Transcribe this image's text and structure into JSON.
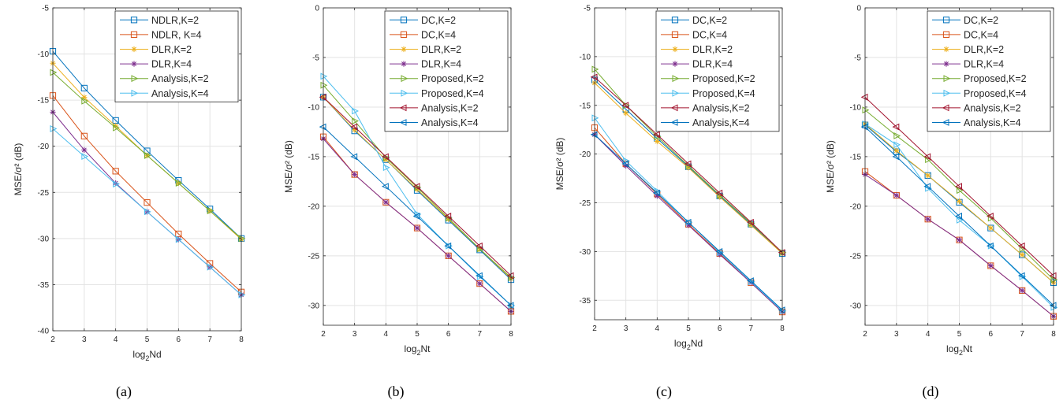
{
  "chart_data": [
    {
      "type": "line",
      "caption": "(a)",
      "xlabel_base": "log",
      "xlabel_sub": "2",
      "xlabel_rest": "Nd",
      "ylabel": "MSE/σ² (dB)",
      "xlim": [
        2,
        8
      ],
      "ylim": [
        -40,
        -5
      ],
      "xticks": [
        "2",
        "3",
        "4",
        "5",
        "6",
        "7",
        "8"
      ],
      "yticks": [
        "-40",
        "-35",
        "-30",
        "-25",
        "-20",
        "-15",
        "-10",
        "-5"
      ],
      "grid": true,
      "legend": "top-right",
      "x": [
        2,
        3,
        4,
        5,
        6,
        7,
        8
      ],
      "series": [
        {
          "name": "NDLR,K=2",
          "color": "#0072BD",
          "marker": "square",
          "values": [
            -9.7,
            -13.7,
            -17.2,
            -20.5,
            -23.7,
            -26.8,
            -30.0
          ]
        },
        {
          "name": "NDLR, K=4",
          "color": "#D95319",
          "marker": "square",
          "values": [
            -14.5,
            -18.9,
            -22.7,
            -26.1,
            -29.5,
            -32.7,
            -35.8
          ]
        },
        {
          "name": "DLR,K=2",
          "color": "#EDB120",
          "marker": "asterisk",
          "values": [
            -11.0,
            -14.7,
            -17.8,
            -21.0,
            -24.0,
            -27.0,
            -30.1
          ]
        },
        {
          "name": "DLR,K=4",
          "color": "#7E2F8E",
          "marker": "asterisk",
          "values": [
            -16.3,
            -20.4,
            -24.0,
            -27.1,
            -30.1,
            -33.1,
            -36.1
          ]
        },
        {
          "name": "Analysis,K=2",
          "color": "#77AC30",
          "marker": "triangle-right",
          "values": [
            -12.0,
            -15.1,
            -18.0,
            -21.0,
            -24.0,
            -27.0,
            -30.0
          ]
        },
        {
          "name": "Analysis,K=4",
          "color": "#4DBEEE",
          "marker": "triangle-right",
          "values": [
            -18.1,
            -21.1,
            -24.1,
            -27.1,
            -30.1,
            -33.1,
            -36.1
          ]
        }
      ]
    },
    {
      "type": "line",
      "caption": "(b)",
      "xlabel_base": "log",
      "xlabel_sub": "2",
      "xlabel_rest": "Nt",
      "ylabel": "MSE/σ² (dB)",
      "xlim": [
        2,
        8
      ],
      "ylim": [
        -32,
        0
      ],
      "xticks": [
        "2",
        "3",
        "4",
        "5",
        "6",
        "7",
        "8"
      ],
      "yticks": [
        "-30",
        "-25",
        "-20",
        "-15",
        "-10",
        "-5",
        "0"
      ],
      "grid": true,
      "legend": "top-right",
      "x": [
        2,
        3,
        4,
        5,
        6,
        7,
        8
      ],
      "series": [
        {
          "name": "DC,K=2",
          "color": "#0072BD",
          "marker": "square",
          "values": [
            -9.0,
            -12.4,
            -15.3,
            -18.4,
            -21.4,
            -24.4,
            -27.4
          ]
        },
        {
          "name": "DC,K=4",
          "color": "#D95319",
          "marker": "square",
          "values": [
            -13.0,
            -16.8,
            -19.6,
            -22.2,
            -25.0,
            -27.8,
            -30.6
          ]
        },
        {
          "name": "DLR,K=2",
          "color": "#EDB120",
          "marker": "asterisk",
          "values": [
            -9.0,
            -12.3,
            -15.3,
            -18.3,
            -21.3,
            -24.3,
            -27.3
          ]
        },
        {
          "name": "DLR,K=4",
          "color": "#7E2F8E",
          "marker": "asterisk",
          "values": [
            -13.2,
            -16.8,
            -19.6,
            -22.2,
            -25.0,
            -27.8,
            -30.6
          ]
        },
        {
          "name": "Proposed,K=2",
          "color": "#77AC30",
          "marker": "triangle-right",
          "values": [
            -7.8,
            -11.4,
            -15.1,
            -18.1,
            -21.2,
            -24.3,
            -27.2
          ]
        },
        {
          "name": "Proposed,K=4",
          "color": "#4DBEEE",
          "marker": "triangle-right",
          "values": [
            -6.9,
            -10.4,
            -16.1,
            -20.8,
            -24.0,
            -27.1,
            -30.0
          ]
        },
        {
          "name": "Analysis,K=2",
          "color": "#A2142F",
          "marker": "triangle-left",
          "values": [
            -9.0,
            -12.0,
            -15.0,
            -18.0,
            -21.0,
            -24.0,
            -27.0
          ]
        },
        {
          "name": "Analysis,K=4",
          "color": "#0072BD",
          "marker": "triangle-left",
          "values": [
            -12.0,
            -15.0,
            -18.0,
            -21.0,
            -24.0,
            -27.0,
            -30.0
          ]
        }
      ]
    },
    {
      "type": "line",
      "caption": "(c)",
      "xlabel_base": "log",
      "xlabel_sub": "2",
      "xlabel_rest": "Nd",
      "ylabel": "MSE/σ² (dB)",
      "xlim": [
        2,
        8
      ],
      "ylim": [
        -37,
        -5
      ],
      "xticks": [
        "2",
        "3",
        "4",
        "5",
        "6",
        "7",
        "8"
      ],
      "yticks": [
        "-35",
        "-30",
        "-25",
        "-20",
        "-15",
        "-10",
        "-5"
      ],
      "grid": true,
      "legend": "top-right",
      "x": [
        2,
        3,
        4,
        5,
        6,
        7,
        8
      ],
      "series": [
        {
          "name": "DC,K=2",
          "color": "#0072BD",
          "marker": "square",
          "values": [
            -12.4,
            -15.4,
            -18.4,
            -21.3,
            -24.3,
            -27.2,
            -30.2
          ]
        },
        {
          "name": "DC,K=4",
          "color": "#D95319",
          "marker": "square",
          "values": [
            -17.3,
            -21.0,
            -24.1,
            -27.2,
            -30.2,
            -33.2,
            -36.2
          ]
        },
        {
          "name": "DLR,K=2",
          "color": "#EDB120",
          "marker": "asterisk",
          "values": [
            -12.7,
            -15.8,
            -18.7,
            -21.4,
            -24.4,
            -27.3,
            -30.2
          ]
        },
        {
          "name": "DLR,K=4",
          "color": "#7E2F8E",
          "marker": "asterisk",
          "values": [
            -18.0,
            -21.2,
            -24.3,
            -27.3,
            -30.3,
            -33.2,
            -36.2
          ]
        },
        {
          "name": "Proposed,K=2",
          "color": "#77AC30",
          "marker": "triangle-right",
          "values": [
            -11.3,
            -15.0,
            -18.2,
            -21.2,
            -24.2,
            -27.1,
            -30.1
          ]
        },
        {
          "name": "Proposed,K=4",
          "color": "#4DBEEE",
          "marker": "triangle-right",
          "values": [
            -16.3,
            -20.7,
            -23.8,
            -27.0,
            -30.1,
            -33.1,
            -36.1
          ]
        },
        {
          "name": "Analysis,K=2",
          "color": "#A2142F",
          "marker": "triangle-left",
          "values": [
            -12.1,
            -15.0,
            -18.0,
            -21.0,
            -24.0,
            -27.0,
            -30.1
          ]
        },
        {
          "name": "Analysis,K=4",
          "color": "#0072BD",
          "marker": "triangle-left",
          "values": [
            -18.0,
            -21.0,
            -24.0,
            -27.0,
            -30.0,
            -33.0,
            -36.0
          ]
        }
      ]
    },
    {
      "type": "line",
      "caption": "(d)",
      "xlabel_base": "log",
      "xlabel_sub": "2",
      "xlabel_rest": "Nt",
      "ylabel": "MSE/σ² (dB)",
      "xlim": [
        2,
        8
      ],
      "ylim": [
        -32,
        0
      ],
      "xticks": [
        "2",
        "3",
        "4",
        "5",
        "6",
        "7",
        "8"
      ],
      "yticks": [
        "-30",
        "-25",
        "-20",
        "-15",
        "-10",
        "-5",
        "0"
      ],
      "grid": true,
      "legend": "top-right",
      "x": [
        2,
        3,
        4,
        5,
        6,
        7,
        8
      ],
      "series": [
        {
          "name": "DC,K=2",
          "color": "#0072BD",
          "marker": "square",
          "values": [
            -11.8,
            -14.5,
            -16.9,
            -19.6,
            -22.2,
            -24.9,
            -27.7
          ]
        },
        {
          "name": "DC,K=4",
          "color": "#D95319",
          "marker": "square",
          "values": [
            -16.5,
            -18.9,
            -21.3,
            -23.4,
            -26.0,
            -28.5,
            -31.1
          ]
        },
        {
          "name": "DLR,K=2",
          "color": "#EDB120",
          "marker": "asterisk",
          "values": [
            -11.7,
            -14.4,
            -16.9,
            -19.5,
            -22.2,
            -24.9,
            -27.7
          ]
        },
        {
          "name": "DLR,K=4",
          "color": "#7E2F8E",
          "marker": "asterisk",
          "values": [
            -16.8,
            -18.9,
            -21.3,
            -23.4,
            -26.0,
            -28.5,
            -31.1
          ]
        },
        {
          "name": "Proposed,K=2",
          "color": "#77AC30",
          "marker": "triangle-right",
          "values": [
            -10.3,
            -12.9,
            -15.3,
            -18.4,
            -21.2,
            -24.3,
            -27.4
          ]
        },
        {
          "name": "Proposed,K=4",
          "color": "#4DBEEE",
          "marker": "triangle-right",
          "values": [
            -11.7,
            -13.8,
            -18.2,
            -21.4,
            -24.0,
            -27.1,
            -30.2
          ]
        },
        {
          "name": "Analysis,K=2",
          "color": "#A2142F",
          "marker": "triangle-left",
          "values": [
            -9.0,
            -12.0,
            -15.0,
            -18.0,
            -21.0,
            -24.0,
            -27.0
          ]
        },
        {
          "name": "Analysis,K=4",
          "color": "#0072BD",
          "marker": "triangle-left",
          "values": [
            -12.0,
            -15.0,
            -18.0,
            -21.0,
            -24.0,
            -27.0,
            -30.0
          ]
        }
      ]
    }
  ]
}
